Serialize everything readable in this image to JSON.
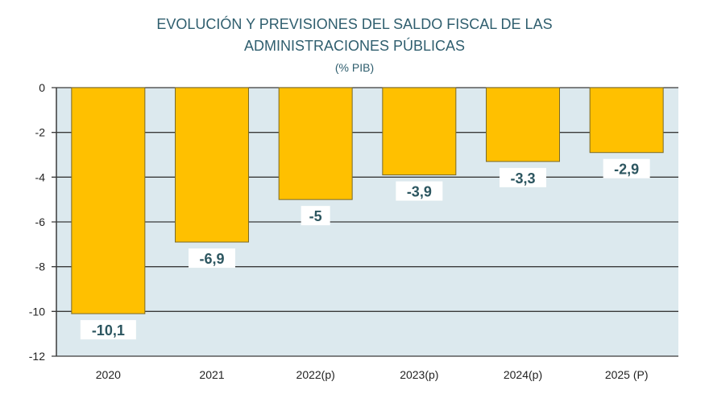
{
  "chart_data": {
    "type": "bar",
    "title_lines": [
      "EVOLUCIÓN Y PREVISIONES DEL SALDO FISCAL DE LAS",
      "ADMINISTRACIONES PÚBLICAS"
    ],
    "subtitle": "(% PIB)",
    "categories": [
      "2020",
      "2021",
      "2022(p)",
      "2023(p)",
      "2024(p)",
      "2025 (P)"
    ],
    "values": [
      -10.1,
      -6.9,
      -5,
      -3.9,
      -3.3,
      -2.9
    ],
    "data_labels": [
      "-10,1",
      "-6,9",
      "-5",
      "-3,9",
      "-3,3",
      "-2,9"
    ],
    "yticks": [
      "0",
      "-2",
      "-4",
      "-6",
      "-8",
      "-10",
      "-12"
    ],
    "ylim": [
      -12,
      0
    ],
    "grid": true,
    "colors": {
      "bar": "#FFC000",
      "bar_edge": "#7a6a2a",
      "plot_bg": "#DCE9EE",
      "text": "#2f5e6e",
      "label": "#2c5660"
    }
  }
}
